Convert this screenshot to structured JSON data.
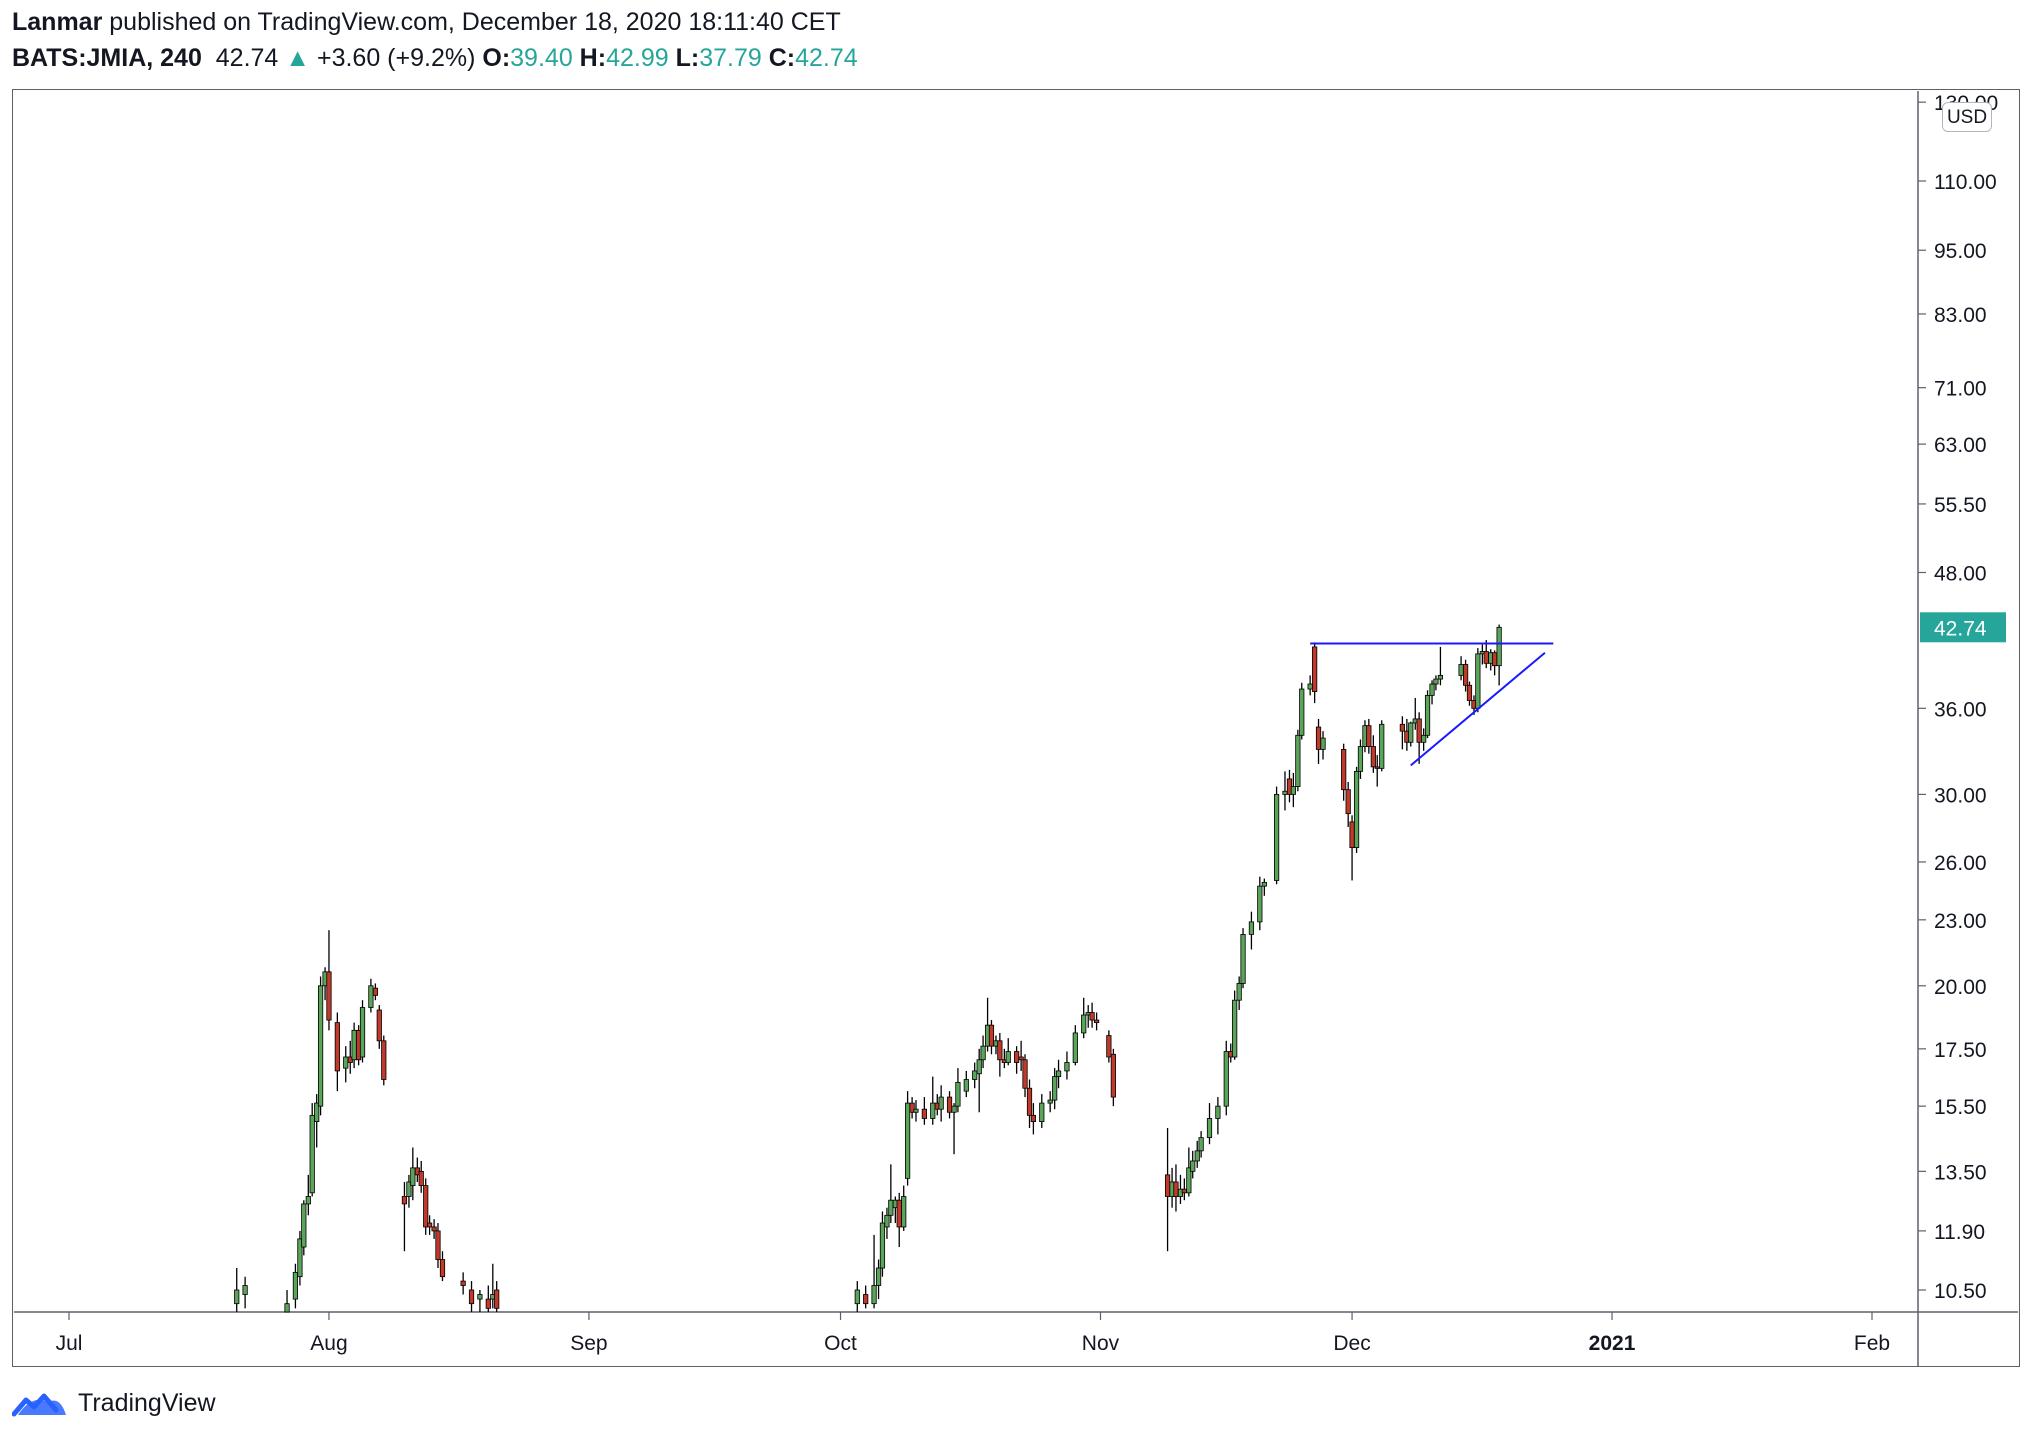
{
  "header": {
    "author": "Lanmar",
    "published_text": "published on TradingView.com, December 18, 2020 18:11:40 CET",
    "symbol": "BATS:JMIA, 240",
    "last": "42.74",
    "change": "+3.60 (+9.2%)",
    "open_label": "O:",
    "open": "39.40",
    "high_label": "H:",
    "high": "42.99",
    "low_label": "L:",
    "low": "37.79",
    "close_label": "C:",
    "close": "42.74"
  },
  "footer": {
    "brand": "TradingView"
  },
  "colors": {
    "up": "#26a69a",
    "candle_up": "#5aa55a",
    "candle_down": "#c0392b",
    "trendline": "#1a1aff",
    "frame": "#5d606b"
  },
  "chart_data": {
    "type": "candlestick",
    "scale": "log",
    "currency": "USD",
    "price_labels": [
      "130.00",
      "110.00",
      "95.00",
      "83.00",
      "71.00",
      "63.00",
      "55.50",
      "48.00",
      "36.00",
      "30.00",
      "26.00",
      "23.00",
      "20.00",
      "17.50",
      "15.50",
      "13.50",
      "11.90",
      "10.50"
    ],
    "price_values": [
      130,
      110,
      95,
      83,
      71,
      63,
      55.5,
      48,
      36,
      30,
      26,
      23,
      20,
      17.5,
      15.5,
      13.5,
      11.9,
      10.5
    ],
    "current_price_label": "42.74",
    "current_price": 42.74,
    "time_labels": [
      "Jul",
      "Aug",
      "Sep",
      "Oct",
      "Nov",
      "Dec",
      "2021",
      "Feb"
    ],
    "time_bold": [
      false,
      false,
      false,
      false,
      false,
      false,
      true,
      false
    ],
    "time_dates": [
      "2020-07-01",
      "2020-08-01",
      "2020-09-01",
      "2020-10-01",
      "2020-11-01",
      "2020-12-01",
      "2021-01-01",
      "2021-02-01"
    ],
    "candles": [
      {
        "t": "2020-07-21",
        "o": 10.2,
        "h": 11.0,
        "l": 10.0,
        "c": 10.5
      },
      {
        "t": "2020-07-22",
        "o": 10.4,
        "h": 10.8,
        "l": 10.1,
        "c": 10.6
      },
      {
        "t": "2020-07-27",
        "o": 10.0,
        "h": 10.5,
        "l": 9.8,
        "c": 10.2
      },
      {
        "t": "2020-07-28",
        "o": 10.3,
        "h": 11.1,
        "l": 10.1,
        "c": 10.9
      },
      {
        "t": "2020-07-28",
        "o": 10.8,
        "h": 11.9,
        "l": 10.6,
        "c": 11.7
      },
      {
        "t": "2020-07-29",
        "o": 11.5,
        "h": 12.7,
        "l": 11.3,
        "c": 12.6
      },
      {
        "t": "2020-07-29",
        "o": 12.6,
        "h": 13.4,
        "l": 12.3,
        "c": 12.8
      },
      {
        "t": "2020-07-30",
        "o": 12.9,
        "h": 15.6,
        "l": 12.8,
        "c": 15.2
      },
      {
        "t": "2020-07-30",
        "o": 15.0,
        "h": 15.9,
        "l": 14.2,
        "c": 15.6
      },
      {
        "t": "2020-07-31",
        "o": 15.5,
        "h": 20.4,
        "l": 15.2,
        "c": 20.0
      },
      {
        "t": "2020-07-31",
        "o": 20.0,
        "h": 20.8,
        "l": 19.4,
        "c": 20.6
      },
      {
        "t": "2020-08-01",
        "o": 20.6,
        "h": 22.5,
        "l": 18.2,
        "c": 18.6
      },
      {
        "t": "2020-08-02",
        "o": 18.5,
        "h": 18.9,
        "l": 16.0,
        "c": 16.7
      },
      {
        "t": "2020-08-03",
        "o": 16.8,
        "h": 17.6,
        "l": 16.3,
        "c": 17.2
      },
      {
        "t": "2020-08-03",
        "o": 17.2,
        "h": 17.8,
        "l": 16.6,
        "c": 17.0
      },
      {
        "t": "2020-08-04",
        "o": 17.1,
        "h": 18.5,
        "l": 16.8,
        "c": 18.2
      },
      {
        "t": "2020-08-04",
        "o": 18.2,
        "h": 18.4,
        "l": 16.9,
        "c": 17.1
      },
      {
        "t": "2020-08-05",
        "o": 17.2,
        "h": 19.4,
        "l": 17.0,
        "c": 19.1
      },
      {
        "t": "2020-08-06",
        "o": 19.1,
        "h": 20.3,
        "l": 18.9,
        "c": 20.0
      },
      {
        "t": "2020-08-06",
        "o": 19.9,
        "h": 20.1,
        "l": 19.4,
        "c": 19.6
      },
      {
        "t": "2020-08-07",
        "o": 19.0,
        "h": 19.2,
        "l": 17.5,
        "c": 17.8
      },
      {
        "t": "2020-08-07",
        "o": 17.8,
        "h": 18.0,
        "l": 16.2,
        "c": 16.4
      },
      {
        "t": "2020-08-10",
        "o": 12.8,
        "h": 13.2,
        "l": 11.4,
        "c": 12.6
      },
      {
        "t": "2020-08-10",
        "o": 12.8,
        "h": 13.4,
        "l": 12.5,
        "c": 13.2
      },
      {
        "t": "2020-08-11",
        "o": 13.1,
        "h": 14.2,
        "l": 12.7,
        "c": 13.6
      },
      {
        "t": "2020-08-11",
        "o": 13.6,
        "h": 13.9,
        "l": 13.2,
        "c": 13.4
      },
      {
        "t": "2020-08-12",
        "o": 13.5,
        "h": 13.8,
        "l": 12.9,
        "c": 13.1
      },
      {
        "t": "2020-08-12",
        "o": 13.1,
        "h": 13.3,
        "l": 11.8,
        "c": 12.0
      },
      {
        "t": "2020-08-13",
        "o": 12.1,
        "h": 12.3,
        "l": 11.8,
        "c": 12.0
      },
      {
        "t": "2020-08-13",
        "o": 12.0,
        "h": 12.2,
        "l": 11.7,
        "c": 11.9
      },
      {
        "t": "2020-08-14",
        "o": 11.9,
        "h": 12.1,
        "l": 11.0,
        "c": 11.2
      },
      {
        "t": "2020-08-14",
        "o": 11.2,
        "h": 11.4,
        "l": 10.7,
        "c": 10.8
      },
      {
        "t": "2020-08-17",
        "o": 10.7,
        "h": 10.9,
        "l": 10.4,
        "c": 10.6
      },
      {
        "t": "2020-08-18",
        "o": 10.5,
        "h": 10.7,
        "l": 10.0,
        "c": 10.2
      },
      {
        "t": "2020-08-19",
        "o": 10.3,
        "h": 10.5,
        "l": 10.0,
        "c": 10.4
      },
      {
        "t": "2020-08-20",
        "o": 10.3,
        "h": 10.6,
        "l": 10.0,
        "c": 10.1
      },
      {
        "t": "2020-08-20",
        "o": 10.3,
        "h": 11.1,
        "l": 10.1,
        "c": 10.4
      },
      {
        "t": "2020-08-21",
        "o": 10.5,
        "h": 10.7,
        "l": 10.0,
        "c": 10.1
      },
      {
        "t": "2020-10-03",
        "o": 10.2,
        "h": 10.7,
        "l": 10.0,
        "c": 10.5
      },
      {
        "t": "2020-10-04",
        "o": 10.4,
        "h": 10.6,
        "l": 10.1,
        "c": 10.2
      },
      {
        "t": "2020-10-05",
        "o": 10.2,
        "h": 11.8,
        "l": 10.1,
        "c": 10.6
      },
      {
        "t": "2020-10-05",
        "o": 10.6,
        "h": 11.2,
        "l": 10.3,
        "c": 11.0
      },
      {
        "t": "2020-10-06",
        "o": 11.0,
        "h": 12.4,
        "l": 10.8,
        "c": 12.1
      },
      {
        "t": "2020-10-06",
        "o": 12.0,
        "h": 12.5,
        "l": 11.7,
        "c": 12.3
      },
      {
        "t": "2020-10-07",
        "o": 12.3,
        "h": 13.7,
        "l": 12.1,
        "c": 12.7
      },
      {
        "t": "2020-10-07",
        "o": 12.5,
        "h": 12.8,
        "l": 12.1,
        "c": 12.7
      },
      {
        "t": "2020-10-08",
        "o": 12.7,
        "h": 12.9,
        "l": 11.5,
        "c": 12.0
      },
      {
        "t": "2020-10-08",
        "o": 12.0,
        "h": 13.1,
        "l": 11.9,
        "c": 12.8
      },
      {
        "t": "2020-10-09",
        "o": 13.3,
        "h": 16.0,
        "l": 13.1,
        "c": 15.6
      },
      {
        "t": "2020-10-09",
        "o": 15.6,
        "h": 15.8,
        "l": 15.1,
        "c": 15.3
      },
      {
        "t": "2020-10-10",
        "o": 15.3,
        "h": 15.7,
        "l": 15.0,
        "c": 15.4
      },
      {
        "t": "2020-10-11",
        "o": 15.4,
        "h": 15.8,
        "l": 14.9,
        "c": 15.1
      },
      {
        "t": "2020-10-12",
        "o": 15.1,
        "h": 16.5,
        "l": 14.9,
        "c": 15.6
      },
      {
        "t": "2020-10-12",
        "o": 15.6,
        "h": 15.9,
        "l": 15.2,
        "c": 15.4
      },
      {
        "t": "2020-10-13",
        "o": 15.4,
        "h": 16.2,
        "l": 15.0,
        "c": 15.8
      },
      {
        "t": "2020-10-14",
        "o": 15.8,
        "h": 16.0,
        "l": 15.1,
        "c": 15.3
      },
      {
        "t": "2020-10-14",
        "o": 15.3,
        "h": 15.6,
        "l": 14.0,
        "c": 15.5
      },
      {
        "t": "2020-10-15",
        "o": 15.5,
        "h": 16.8,
        "l": 15.3,
        "c": 16.3
      },
      {
        "t": "2020-10-16",
        "o": 16.0,
        "h": 16.7,
        "l": 15.8,
        "c": 16.4
      },
      {
        "t": "2020-10-17",
        "o": 16.4,
        "h": 17.0,
        "l": 16.1,
        "c": 16.7
      },
      {
        "t": "2020-10-17",
        "o": 16.6,
        "h": 17.5,
        "l": 15.3,
        "c": 17.1
      },
      {
        "t": "2020-10-18",
        "o": 17.1,
        "h": 18.0,
        "l": 16.8,
        "c": 17.6
      },
      {
        "t": "2020-10-18",
        "o": 17.6,
        "h": 19.5,
        "l": 17.4,
        "c": 18.4
      },
      {
        "t": "2020-10-19",
        "o": 18.4,
        "h": 18.6,
        "l": 17.3,
        "c": 17.6
      },
      {
        "t": "2020-10-19",
        "o": 17.6,
        "h": 18.0,
        "l": 17.3,
        "c": 17.8
      },
      {
        "t": "2020-10-20",
        "o": 17.8,
        "h": 18.1,
        "l": 16.5,
        "c": 17.1
      },
      {
        "t": "2020-10-20",
        "o": 17.1,
        "h": 17.5,
        "l": 16.8,
        "c": 17.0
      },
      {
        "t": "2020-10-21",
        "o": 17.0,
        "h": 17.9,
        "l": 16.9,
        "c": 17.4
      },
      {
        "t": "2020-10-22",
        "o": 17.4,
        "h": 17.6,
        "l": 16.6,
        "c": 17.0
      },
      {
        "t": "2020-10-22",
        "o": 17.2,
        "h": 17.8,
        "l": 16.7,
        "c": 17.1
      },
      {
        "t": "2020-10-23",
        "o": 17.1,
        "h": 17.3,
        "l": 15.8,
        "c": 16.1
      },
      {
        "t": "2020-10-23",
        "o": 16.1,
        "h": 16.4,
        "l": 14.8,
        "c": 15.2
      },
      {
        "t": "2020-10-24",
        "o": 15.2,
        "h": 15.6,
        "l": 14.6,
        "c": 15.0
      },
      {
        "t": "2020-10-25",
        "o": 15.0,
        "h": 15.9,
        "l": 14.8,
        "c": 15.6
      },
      {
        "t": "2020-10-26",
        "o": 15.6,
        "h": 16.0,
        "l": 15.3,
        "c": 15.7
      },
      {
        "t": "2020-10-26",
        "o": 15.7,
        "h": 16.8,
        "l": 15.4,
        "c": 16.5
      },
      {
        "t": "2020-10-27",
        "o": 16.5,
        "h": 17.1,
        "l": 16.1,
        "c": 16.7
      },
      {
        "t": "2020-10-28",
        "o": 16.7,
        "h": 17.4,
        "l": 16.4,
        "c": 17.0
      },
      {
        "t": "2020-10-29",
        "o": 17.0,
        "h": 18.4,
        "l": 16.9,
        "c": 18.1
      },
      {
        "t": "2020-10-30",
        "o": 18.1,
        "h": 19.5,
        "l": 17.9,
        "c": 18.8
      },
      {
        "t": "2020-10-30",
        "o": 18.8,
        "h": 19.2,
        "l": 18.3,
        "c": 18.9
      },
      {
        "t": "2020-10-31",
        "o": 18.9,
        "h": 19.3,
        "l": 18.3,
        "c": 18.6
      },
      {
        "t": "2020-10-31",
        "o": 18.6,
        "h": 18.9,
        "l": 18.2,
        "c": 18.5
      },
      {
        "t": "2020-11-02",
        "o": 18.0,
        "h": 18.2,
        "l": 17.0,
        "c": 17.2
      },
      {
        "t": "2020-11-02",
        "o": 17.3,
        "h": 17.5,
        "l": 15.5,
        "c": 15.8
      },
      {
        "t": "2020-11-09",
        "o": 13.4,
        "h": 14.8,
        "l": 11.4,
        "c": 12.8
      },
      {
        "t": "2020-11-09",
        "o": 12.8,
        "h": 13.6,
        "l": 12.5,
        "c": 13.2
      },
      {
        "t": "2020-11-10",
        "o": 13.2,
        "h": 13.7,
        "l": 12.4,
        "c": 12.8
      },
      {
        "t": "2020-11-10",
        "o": 12.8,
        "h": 13.4,
        "l": 12.6,
        "c": 13.0
      },
      {
        "t": "2020-11-11",
        "o": 13.0,
        "h": 13.3,
        "l": 12.7,
        "c": 12.9
      },
      {
        "t": "2020-11-11",
        "o": 12.9,
        "h": 14.2,
        "l": 12.8,
        "c": 13.6
      },
      {
        "t": "2020-11-12",
        "o": 13.5,
        "h": 14.1,
        "l": 13.3,
        "c": 13.8
      },
      {
        "t": "2020-11-12",
        "o": 13.8,
        "h": 14.4,
        "l": 13.6,
        "c": 14.1
      },
      {
        "t": "2020-11-13",
        "o": 14.1,
        "h": 14.7,
        "l": 13.9,
        "c": 14.5
      },
      {
        "t": "2020-11-14",
        "o": 14.5,
        "h": 15.6,
        "l": 14.3,
        "c": 15.1
      },
      {
        "t": "2020-11-15",
        "o": 15.1,
        "h": 15.8,
        "l": 14.6,
        "c": 15.5
      },
      {
        "t": "2020-11-16",
        "o": 15.5,
        "h": 17.8,
        "l": 15.2,
        "c": 17.4
      },
      {
        "t": "2020-11-16",
        "o": 17.4,
        "h": 17.7,
        "l": 17.0,
        "c": 17.2
      },
      {
        "t": "2020-11-17",
        "o": 17.2,
        "h": 19.8,
        "l": 17.1,
        "c": 19.4
      },
      {
        "t": "2020-11-17",
        "o": 19.4,
        "h": 20.4,
        "l": 19.0,
        "c": 20.1
      },
      {
        "t": "2020-11-18",
        "o": 20.1,
        "h": 22.6,
        "l": 19.9,
        "c": 22.3
      },
      {
        "t": "2020-11-19",
        "o": 22.3,
        "h": 23.4,
        "l": 21.6,
        "c": 22.9
      },
      {
        "t": "2020-11-20",
        "o": 22.9,
        "h": 25.2,
        "l": 22.5,
        "c": 24.7
      },
      {
        "t": "2020-11-20",
        "o": 24.7,
        "h": 25.1,
        "l": 24.2,
        "c": 24.9
      },
      {
        "t": "2020-11-22",
        "o": 25.0,
        "h": 30.5,
        "l": 24.8,
        "c": 30.0
      },
      {
        "t": "2020-11-23",
        "o": 30.0,
        "h": 31.5,
        "l": 29.0,
        "c": 30.2
      },
      {
        "t": "2020-11-23",
        "o": 31.0,
        "h": 31.6,
        "l": 29.5,
        "c": 30.0
      },
      {
        "t": "2020-11-24",
        "o": 30.0,
        "h": 31.4,
        "l": 29.2,
        "c": 30.5
      },
      {
        "t": "2020-11-24",
        "o": 30.5,
        "h": 34.4,
        "l": 30.2,
        "c": 34.0
      },
      {
        "t": "2020-11-25",
        "o": 34.0,
        "h": 38.0,
        "l": 33.7,
        "c": 37.5
      },
      {
        "t": "2020-11-26",
        "o": 37.5,
        "h": 38.6,
        "l": 37.0,
        "c": 37.9
      },
      {
        "t": "2020-11-26",
        "o": 41.0,
        "h": 41.4,
        "l": 36.4,
        "c": 37.3
      },
      {
        "t": "2020-11-27",
        "o": 34.6,
        "h": 35.2,
        "l": 32.0,
        "c": 33.0
      },
      {
        "t": "2020-11-27",
        "o": 33.0,
        "h": 34.3,
        "l": 32.3,
        "c": 33.8
      },
      {
        "t": "2020-11-30",
        "o": 33.0,
        "h": 33.4,
        "l": 29.6,
        "c": 30.3
      },
      {
        "t": "2020-11-30",
        "o": 30.3,
        "h": 30.8,
        "l": 28.0,
        "c": 28.8
      },
      {
        "t": "2020-12-01",
        "o": 28.3,
        "h": 28.7,
        "l": 25.0,
        "c": 26.8
      },
      {
        "t": "2020-12-01",
        "o": 26.8,
        "h": 31.8,
        "l": 26.5,
        "c": 31.5
      },
      {
        "t": "2020-12-02",
        "o": 31.5,
        "h": 33.7,
        "l": 31.0,
        "c": 33.2
      },
      {
        "t": "2020-12-02",
        "o": 33.2,
        "h": 35.1,
        "l": 32.8,
        "c": 34.7
      },
      {
        "t": "2020-12-03",
        "o": 34.7,
        "h": 35.2,
        "l": 32.7,
        "c": 33.2
      },
      {
        "t": "2020-12-03",
        "o": 33.2,
        "h": 34.0,
        "l": 31.4,
        "c": 31.8
      },
      {
        "t": "2020-12-04",
        "o": 31.8,
        "h": 32.6,
        "l": 30.5,
        "c": 31.7
      },
      {
        "t": "2020-12-04",
        "o": 31.7,
        "h": 35.1,
        "l": 31.5,
        "c": 34.8
      },
      {
        "t": "2020-12-07",
        "o": 34.8,
        "h": 35.4,
        "l": 33.0,
        "c": 34.3
      },
      {
        "t": "2020-12-07",
        "o": 34.3,
        "h": 35.2,
        "l": 32.9,
        "c": 33.5
      },
      {
        "t": "2020-12-08",
        "o": 33.5,
        "h": 35.0,
        "l": 33.2,
        "c": 34.9
      },
      {
        "t": "2020-12-08",
        "o": 34.9,
        "h": 36.8,
        "l": 34.4,
        "c": 35.2
      },
      {
        "t": "2020-12-09",
        "o": 35.2,
        "h": 35.7,
        "l": 32.0,
        "c": 33.5
      },
      {
        "t": "2020-12-09",
        "o": 33.5,
        "h": 34.5,
        "l": 32.9,
        "c": 34.0
      },
      {
        "t": "2020-12-10",
        "o": 34.0,
        "h": 37.4,
        "l": 33.8,
        "c": 37.0
      },
      {
        "t": "2020-12-10",
        "o": 37.0,
        "h": 38.2,
        "l": 36.3,
        "c": 37.9
      },
      {
        "t": "2020-12-11",
        "o": 37.9,
        "h": 38.6,
        "l": 37.4,
        "c": 38.3
      },
      {
        "t": "2020-12-11",
        "o": 38.3,
        "h": 41.0,
        "l": 37.8,
        "c": 38.6
      },
      {
        "t": "2020-12-14",
        "o": 38.6,
        "h": 40.2,
        "l": 38.2,
        "c": 39.5
      },
      {
        "t": "2020-12-14",
        "o": 39.5,
        "h": 39.9,
        "l": 37.3,
        "c": 37.8
      },
      {
        "t": "2020-12-15",
        "o": 37.8,
        "h": 38.1,
        "l": 36.2,
        "c": 36.6
      },
      {
        "t": "2020-12-15",
        "o": 36.6,
        "h": 37.0,
        "l": 35.5,
        "c": 36.0
      },
      {
        "t": "2020-12-16",
        "o": 36.0,
        "h": 40.9,
        "l": 35.7,
        "c": 40.4
      },
      {
        "t": "2020-12-16",
        "o": 40.4,
        "h": 41.2,
        "l": 39.5,
        "c": 40.6
      },
      {
        "t": "2020-12-17",
        "o": 40.6,
        "h": 41.6,
        "l": 39.2,
        "c": 39.6
      },
      {
        "t": "2020-12-17",
        "o": 39.6,
        "h": 40.8,
        "l": 39.0,
        "c": 40.5
      },
      {
        "t": "2020-12-18",
        "o": 40.5,
        "h": 40.7,
        "l": 38.6,
        "c": 39.4
      },
      {
        "t": "2020-12-18",
        "o": 39.4,
        "h": 42.99,
        "l": 37.79,
        "c": 42.74
      }
    ],
    "trendlines": [
      {
        "type": "horizontal_resistance",
        "t1": "2020-11-26",
        "p1": 41.3,
        "t2": "2020-12-25",
        "p2": 41.3
      },
      {
        "type": "rising_support",
        "t1": "2020-12-08",
        "p1": 31.9,
        "t2": "2020-12-24",
        "p2": 40.5
      }
    ]
  }
}
